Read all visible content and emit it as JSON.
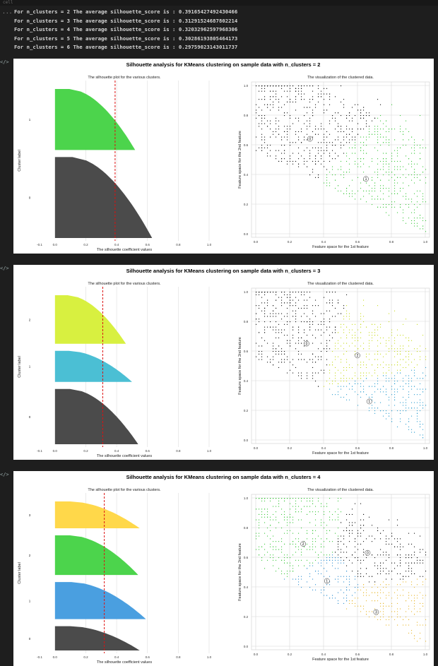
{
  "output": {
    "ellipsis": "...",
    "lines": [
      "For n_clusters = 2 The average silhouette_score is : 0.39165427492430466",
      "For n_clusters = 3 The average silhouette_score is : 0.31291524687802214",
      "For n_clusters = 4 The average silhouette_score is : 0.32032962597968306",
      "For n_clusters = 5 The average silhouette_score is : 0.30286193805464173",
      "For n_clusters = 6 The average silhouette_score is : 0.29759023143011737"
    ]
  },
  "gutter_icon": "</>",
  "chart_data": [
    {
      "type": "silhouette_and_scatter",
      "title": "Silhouette analysis for KMeans clustering on sample data with n_clusters = 2",
      "left": {
        "title": "The silhouette plot for the various clusters.",
        "xlabel": "The silhouette coefficient values",
        "ylabel": "Cluster label",
        "xlim": [
          -0.1,
          1.0
        ],
        "xticks": [
          "-0.1",
          "0.0",
          "0.2",
          "0.4",
          "0.6",
          "0.8",
          "1.0"
        ],
        "average_score": 0.39,
        "clusters": [
          {
            "label": "0",
            "size": 570,
            "max": 0.63,
            "color": "#4b4b4b"
          },
          {
            "label": "1",
            "size": 430,
            "max": 0.52,
            "color": "#4cd44c"
          }
        ]
      },
      "right": {
        "title": "The visualization of the clustered data.",
        "xlabel": "Feature space for the 1st feature",
        "ylabel": "Feature space for the 2nd feature",
        "xticks": [
          "0.0",
          "0.2",
          "0.4",
          "0.6",
          "0.8",
          "1.0"
        ],
        "yticks": [
          "0.0",
          "0.2",
          "0.4",
          "0.6",
          "0.8",
          "1.0"
        ],
        "centers": [
          {
            "label": "0",
            "x": 0.32,
            "y": 0.64,
            "color": "#111111"
          },
          {
            "label": "1",
            "x": 0.65,
            "y": 0.37,
            "color": "#3cc83c"
          }
        ]
      }
    },
    {
      "type": "silhouette_and_scatter",
      "title": "Silhouette analysis for KMeans clustering on sample data with n_clusters = 3",
      "left": {
        "title": "The silhouette plot for the various clusters.",
        "xlabel": "The silhouette coefficient values",
        "ylabel": "Cluster label",
        "xlim": [
          -0.1,
          1.0
        ],
        "xticks": [
          "-0.1",
          "0.0",
          "0.2",
          "0.4",
          "0.6",
          "0.8",
          "1.0"
        ],
        "average_score": 0.31,
        "clusters": [
          {
            "label": "0",
            "size": 410,
            "max": 0.54,
            "color": "#4b4b4b"
          },
          {
            "label": "1",
            "size": 230,
            "max": 0.5,
            "color": "#4bbfd4"
          },
          {
            "label": "2",
            "size": 360,
            "max": 0.46,
            "color": "#d8f040"
          }
        ]
      },
      "right": {
        "title": "The visualization of the clustered data.",
        "xlabel": "Feature space for the 1st feature",
        "ylabel": "Feature space for the 2nd feature",
        "xticks": [
          "0.0",
          "0.2",
          "0.4",
          "0.6",
          "0.8",
          "1.0"
        ],
        "yticks": [
          "0.0",
          "0.2",
          "0.4",
          "0.6",
          "0.8",
          "1.0"
        ],
        "centers": [
          {
            "label": "0",
            "x": 0.3,
            "y": 0.65,
            "color": "#111111"
          },
          {
            "label": "1",
            "x": 0.67,
            "y": 0.26,
            "color": "#2f9fd0"
          },
          {
            "label": "2",
            "x": 0.6,
            "y": 0.57,
            "color": "#c8dc20"
          }
        ]
      }
    },
    {
      "type": "silhouette_and_scatter",
      "title": "Silhouette analysis for KMeans clustering on sample data with n_clusters = 4",
      "left": {
        "title": "The silhouette plot for the various clusters.",
        "xlabel": "The silhouette coefficient values",
        "ylabel": "Cluster label",
        "xlim": [
          -0.1,
          1.0
        ],
        "xticks": [
          "-0.1",
          "0.0",
          "0.2",
          "0.4",
          "0.6",
          "0.8",
          "1.0"
        ],
        "average_score": 0.32,
        "clusters": [
          {
            "label": "0",
            "size": 190,
            "max": 0.55,
            "color": "#4b4b4b"
          },
          {
            "label": "1",
            "size": 290,
            "max": 0.59,
            "color": "#4a9fe0"
          },
          {
            "label": "2",
            "size": 310,
            "max": 0.54,
            "color": "#4cd44c"
          },
          {
            "label": "3",
            "size": 210,
            "max": 0.55,
            "color": "#ffd84a"
          }
        ]
      },
      "right": {
        "title": "The visualization of the clustered data.",
        "xlabel": "Feature space for the 1st feature",
        "ylabel": "Feature space for the 2nd feature",
        "xticks": [
          "0.0",
          "0.2",
          "0.4",
          "0.6",
          "0.8",
          "1.0"
        ],
        "yticks": [
          "0.0",
          "0.2",
          "0.4",
          "0.6",
          "0.8",
          "1.0"
        ],
        "centers": [
          {
            "label": "0",
            "x": 0.66,
            "y": 0.63,
            "color": "#111111"
          },
          {
            "label": "1",
            "x": 0.42,
            "y": 0.44,
            "color": "#2f8fd0"
          },
          {
            "label": "2",
            "x": 0.28,
            "y": 0.69,
            "color": "#3cc83c"
          },
          {
            "label": "3",
            "x": 0.71,
            "y": 0.23,
            "color": "#e8b830"
          }
        ]
      }
    }
  ]
}
